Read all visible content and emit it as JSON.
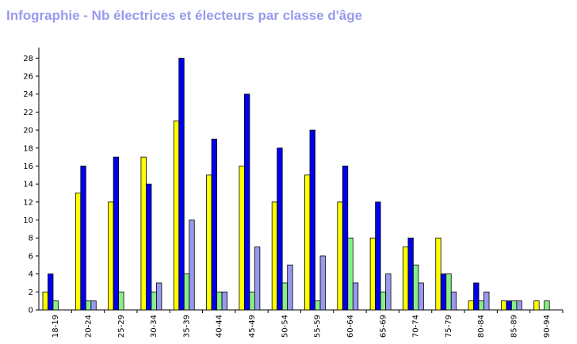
{
  "chart_data": {
    "type": "bar",
    "title": "Infographie - Nb électrices et électeurs par classe d'âge",
    "categories": [
      "18-19",
      "20-24",
      "25-29",
      "30-34",
      "35-39",
      "40-44",
      "45-49",
      "50-54",
      "55-59",
      "60-64",
      "65-69",
      "70-74",
      "75-79",
      "80-84",
      "85-89",
      "90-94"
    ],
    "series": [
      {
        "color": "#ffff00",
        "values": [
          2,
          13,
          12,
          17,
          21,
          15,
          16,
          12,
          15,
          12,
          8,
          7,
          8,
          1,
          1,
          1
        ]
      },
      {
        "color": "#0000ee",
        "values": [
          4,
          16,
          17,
          14,
          28,
          19,
          24,
          18,
          20,
          16,
          12,
          8,
          4,
          3,
          1,
          0
        ]
      },
      {
        "color": "#88ee88",
        "values": [
          1,
          1,
          2,
          2,
          4,
          2,
          2,
          3,
          1,
          8,
          2,
          5,
          4,
          1,
          1,
          1
        ]
      },
      {
        "color": "#9999ee",
        "values": [
          0,
          1,
          0,
          3,
          10,
          2,
          7,
          5,
          6,
          3,
          4,
          3,
          2,
          2,
          1,
          0
        ]
      }
    ],
    "yticks": [
      "0",
      "2",
      "4",
      "6",
      "8",
      "10",
      "12",
      "14",
      "16",
      "18",
      "20",
      "22",
      "24",
      "26",
      "28"
    ],
    "ylim": [
      0,
      29
    ],
    "grid": false,
    "legend": "none"
  }
}
